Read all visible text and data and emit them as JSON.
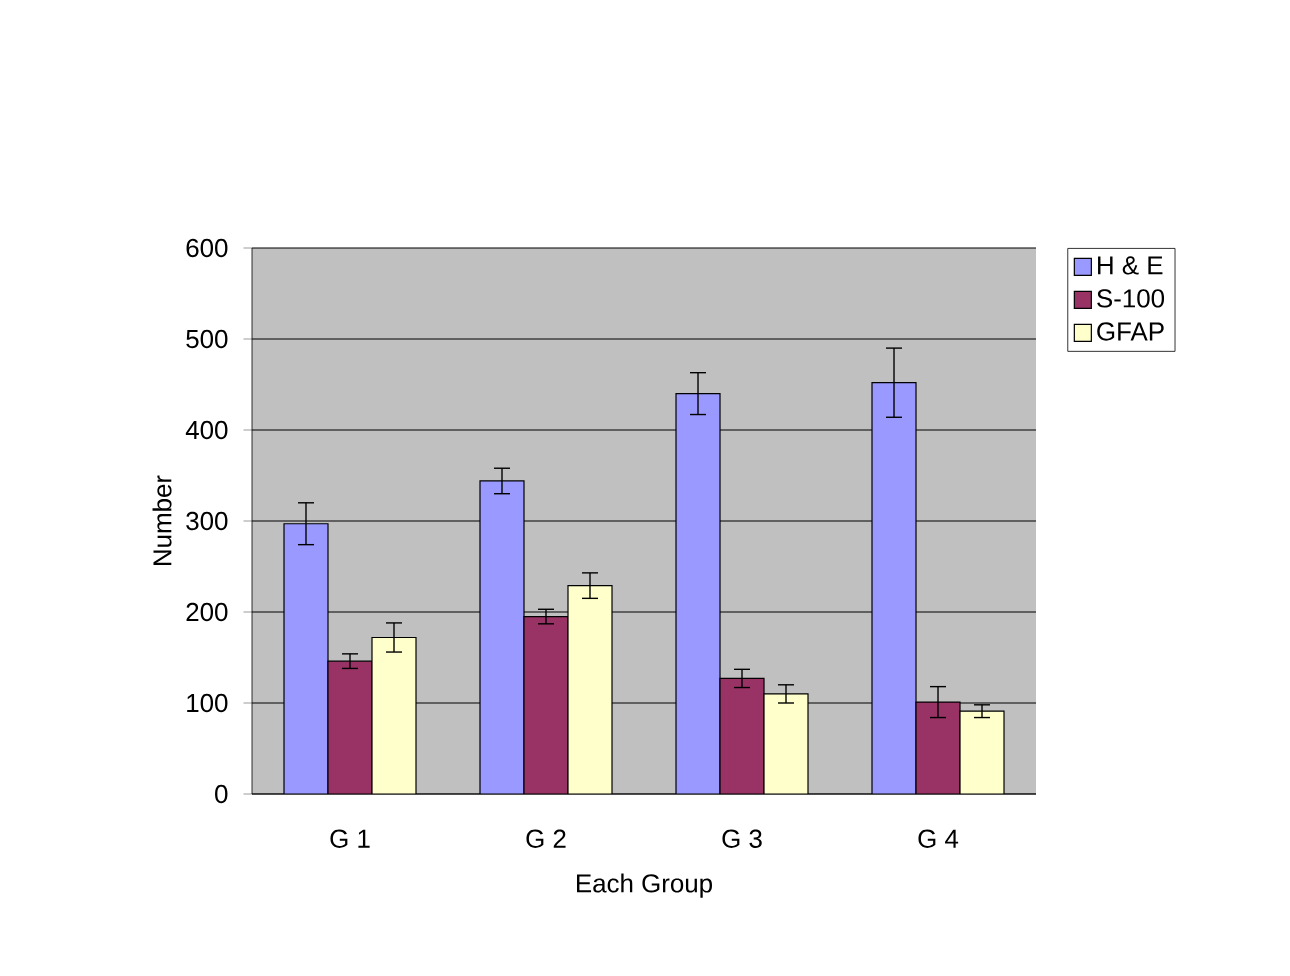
{
  "chart_data": {
    "type": "bar",
    "xlabel": "Each Group",
    "ylabel": "Number",
    "categories": [
      "G 1",
      "G 2",
      "G 3",
      "G 4"
    ],
    "series": [
      {
        "name": "H & E",
        "color": "#9999ff",
        "values": [
          297,
          344,
          440,
          452
        ],
        "errors": [
          23,
          14,
          23,
          38
        ]
      },
      {
        "name": "S-100",
        "color": "#993366",
        "values": [
          146,
          195,
          127,
          101
        ],
        "errors": [
          8,
          8,
          10,
          17
        ]
      },
      {
        "name": "GFAP",
        "color": "#ffffcc",
        "values": [
          172,
          229,
          110,
          91
        ],
        "errors": [
          16,
          14,
          10,
          7
        ]
      }
    ],
    "ylim": [
      0,
      600
    ],
    "yticks": [
      0,
      100,
      200,
      300,
      400,
      500,
      600
    ],
    "grid": "y",
    "legend": "right"
  }
}
